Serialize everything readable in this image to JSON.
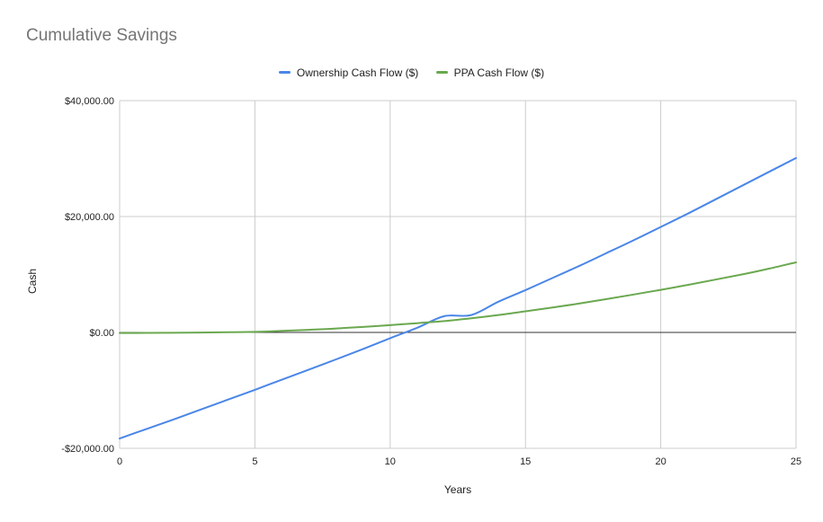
{
  "chart_data": {
    "type": "line",
    "title": "Cumulative Savings",
    "xlabel": "Years",
    "ylabel": "Cash",
    "xlim": [
      0,
      25
    ],
    "ylim": [
      -20000,
      40000
    ],
    "x_ticks": [
      0,
      5,
      10,
      15,
      20,
      25
    ],
    "x_tick_labels": [
      "0",
      "5",
      "10",
      "15",
      "20",
      "25"
    ],
    "y_ticks": [
      -20000,
      0,
      20000,
      40000
    ],
    "y_tick_labels": [
      "-$20,000.00",
      "$0.00",
      "$20,000.00",
      "$40,000.00"
    ],
    "grid": true,
    "legend_position": "top",
    "series": [
      {
        "name": "Ownership Cash Flow ($)",
        "color": "#4a86e8",
        "points": [
          [
            0,
            -18300
          ],
          [
            1,
            -16650
          ],
          [
            2,
            -15000
          ],
          [
            3,
            -13300
          ],
          [
            4,
            -11600
          ],
          [
            5,
            -9900
          ],
          [
            6,
            -8150
          ],
          [
            7,
            -6400
          ],
          [
            8,
            -4650
          ],
          [
            9,
            -2850
          ],
          [
            10,
            -1000
          ],
          [
            11,
            800
          ],
          [
            12,
            2800
          ],
          [
            13,
            3000
          ],
          [
            14,
            5300
          ],
          [
            15,
            7300
          ],
          [
            16,
            9400
          ],
          [
            17,
            11500
          ],
          [
            18,
            13700
          ],
          [
            19,
            15900
          ],
          [
            20,
            18200
          ],
          [
            21,
            20500
          ],
          [
            22,
            22900
          ],
          [
            23,
            25300
          ],
          [
            24,
            27700
          ],
          [
            25,
            30100
          ]
        ]
      },
      {
        "name": "PPA Cash Flow ($)",
        "color": "#6aa84f",
        "points": [
          [
            0,
            -100
          ],
          [
            1,
            -80
          ],
          [
            2,
            -60
          ],
          [
            3,
            -20
          ],
          [
            4,
            30
          ],
          [
            5,
            100
          ],
          [
            6,
            260
          ],
          [
            7,
            450
          ],
          [
            8,
            680
          ],
          [
            9,
            950
          ],
          [
            10,
            1250
          ],
          [
            11,
            1600
          ],
          [
            12,
            1950
          ],
          [
            13,
            2450
          ],
          [
            14,
            3000
          ],
          [
            15,
            3650
          ],
          [
            16,
            4300
          ],
          [
            17,
            5000
          ],
          [
            18,
            5750
          ],
          [
            19,
            6550
          ],
          [
            20,
            7350
          ],
          [
            21,
            8200
          ],
          [
            22,
            9100
          ],
          [
            23,
            10000
          ],
          [
            24,
            11000
          ],
          [
            25,
            12100
          ]
        ]
      }
    ]
  }
}
